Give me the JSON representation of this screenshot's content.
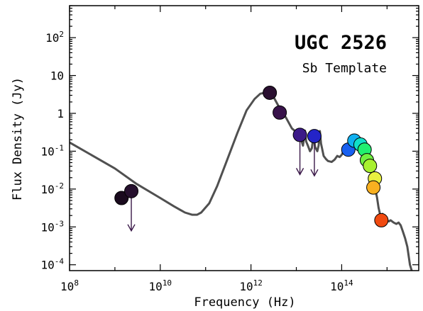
{
  "chart_data": {
    "type": "scatter",
    "title": "UGC 2526",
    "subtitle": "Sb Template",
    "xlabel": "Frequency (Hz)",
    "ylabel": "Flux Density (Jy)",
    "x_scale": "log",
    "y_scale": "log",
    "xlim": [
      100000000.0,
      5000000000000000.0
    ],
    "ylim": [
      7e-05,
      700
    ],
    "x_ticks": [
      {
        "value": 100000000.0,
        "base": "10",
        "exp": "8"
      },
      {
        "value": 10000000000.0,
        "base": "10",
        "exp": "10"
      },
      {
        "value": 1000000000000.0,
        "base": "10",
        "exp": "12"
      },
      {
        "value": 100000000000000.0,
        "base": "10",
        "exp": "14"
      }
    ],
    "y_ticks": [
      {
        "value": 0.0001,
        "base": "10",
        "exp": "-4"
      },
      {
        "value": 0.001,
        "base": "10",
        "exp": "-3"
      },
      {
        "value": 0.01,
        "base": "10",
        "exp": "-2"
      },
      {
        "value": 0.1,
        "base": "10",
        "exp": "-1"
      },
      {
        "value": 1,
        "base": "1",
        "exp": ""
      },
      {
        "value": 10,
        "base": "10",
        "exp": ""
      },
      {
        "value": 100,
        "base": "10",
        "exp": "2"
      }
    ],
    "grid": false,
    "series": [
      {
        "kind": "points",
        "points": [
          {
            "x": 1400000000.0,
            "y": 0.0058,
            "upper_limit": false,
            "color": "#1a0a1e"
          },
          {
            "x": 2300000000.0,
            "y": 0.0088,
            "upper_limit": true,
            "color": "#26102e"
          },
          {
            "x": 2600000000000.0,
            "y": 3.5,
            "upper_limit": false,
            "color": "#2a0f30"
          },
          {
            "x": 4300000000000.0,
            "y": 1.05,
            "upper_limit": false,
            "color": "#38124a"
          },
          {
            "x": 12000000000000.0,
            "y": 0.27,
            "upper_limit": true,
            "color": "#3c1a88"
          },
          {
            "x": 25000000000000.0,
            "y": 0.25,
            "upper_limit": true,
            "color": "#2424c8"
          },
          {
            "x": 140000000000000.0,
            "y": 0.11,
            "upper_limit": false,
            "color": "#1860f0"
          },
          {
            "x": 190000000000000.0,
            "y": 0.19,
            "upper_limit": false,
            "color": "#10b0f0"
          },
          {
            "x": 260000000000000.0,
            "y": 0.15,
            "upper_limit": false,
            "color": "#10e0c8"
          },
          {
            "x": 320000000000000.0,
            "y": 0.11,
            "upper_limit": false,
            "color": "#20f070"
          },
          {
            "x": 360000000000000.0,
            "y": 0.058,
            "upper_limit": false,
            "color": "#70f040"
          },
          {
            "x": 420000000000000.0,
            "y": 0.041,
            "upper_limit": false,
            "color": "#a8f030"
          },
          {
            "x": 540000000000000.0,
            "y": 0.019,
            "upper_limit": false,
            "color": "#e8f040"
          },
          {
            "x": 500000000000000.0,
            "y": 0.011,
            "upper_limit": false,
            "color": "#f8b020"
          },
          {
            "x": 750000000000000.0,
            "y": 0.0015,
            "upper_limit": false,
            "color": "#f04a10"
          }
        ]
      },
      {
        "kind": "line",
        "color": "#505050",
        "points": [
          [
            100000000.0,
            0.17
          ],
          [
            1000000000.0,
            0.035
          ],
          [
            3000000000.0,
            0.0137
          ],
          [
            10000000000.0,
            0.0058
          ],
          [
            20000000000.0,
            0.0035
          ],
          [
            35000000000.0,
            0.0024
          ],
          [
            50000000000.0,
            0.0021
          ],
          [
            65000000000.0,
            0.0021
          ],
          [
            80000000000.0,
            0.0024
          ],
          [
            120000000000.0,
            0.0042
          ],
          [
            180000000000.0,
            0.012
          ],
          [
            300000000000.0,
            0.06
          ],
          [
            500000000000.0,
            0.3
          ],
          [
            800000000000.0,
            1.2
          ],
          [
            1200000000000.0,
            2.4
          ],
          [
            1600000000000.0,
            3.3
          ],
          [
            2200000000000.0,
            3.6
          ],
          [
            3000000000000.0,
            3.0
          ],
          [
            4000000000000.0,
            1.6
          ],
          [
            6000000000000.0,
            0.75
          ],
          [
            8000000000000.0,
            0.4
          ],
          [
            10000000000000.0,
            0.32
          ],
          [
            11000000000000.0,
            0.2
          ],
          [
            11500000000000.0,
            0.28
          ],
          [
            12500000000000.0,
            0.22
          ],
          [
            14000000000000.0,
            0.14
          ],
          [
            15500000000000.0,
            0.35
          ],
          [
            16500000000000.0,
            0.18
          ],
          [
            18000000000000.0,
            0.14
          ],
          [
            20000000000000.0,
            0.1
          ],
          [
            22000000000000.0,
            0.12
          ],
          [
            24000000000000.0,
            0.26
          ],
          [
            26000000000000.0,
            0.13
          ],
          [
            29000000000000.0,
            0.1
          ],
          [
            31000000000000.0,
            0.14
          ],
          [
            33000000000000.0,
            0.34
          ],
          [
            35000000000000.0,
            0.16
          ],
          [
            40000000000000.0,
            0.075
          ],
          [
            45000000000000.0,
            0.062
          ],
          [
            50000000000000.0,
            0.055
          ],
          [
            60000000000000.0,
            0.052
          ],
          [
            70000000000000.0,
            0.06
          ],
          [
            80000000000000.0,
            0.075
          ],
          [
            90000000000000.0,
            0.07
          ],
          [
            100000000000000.0,
            0.08
          ],
          [
            110000000000000.0,
            0.1
          ],
          [
            130000000000000.0,
            0.13
          ],
          [
            150000000000000.0,
            0.16
          ],
          [
            170000000000000.0,
            0.175
          ],
          [
            190000000000000.0,
            0.17
          ],
          [
            220000000000000.0,
            0.15
          ],
          [
            250000000000000.0,
            0.13
          ],
          [
            280000000000000.0,
            0.11
          ],
          [
            300000000000000.0,
            0.09
          ],
          [
            330000000000000.0,
            0.08
          ],
          [
            360000000000000.0,
            0.06
          ],
          [
            400000000000000.0,
            0.045
          ],
          [
            450000000000000.0,
            0.03
          ],
          [
            500000000000000.0,
            0.018
          ],
          [
            550000000000000.0,
            0.01
          ],
          [
            600000000000000.0,
            0.006
          ],
          [
            650000000000000.0,
            0.0032
          ],
          [
            700000000000000.0,
            0.0022
          ],
          [
            750000000000000.0,
            0.0019
          ],
          [
            800000000000000.0,
            0.0022
          ],
          [
            830000000000000.0,
            0.0014
          ],
          [
            860000000000000.0,
            0.0019
          ],
          [
            900000000000000.0,
            0.0016
          ],
          [
            950000000000000.0,
            0.0013
          ],
          [
            1000000000000000.0,
            0.0015
          ],
          [
            1100000000000000.0,
            0.0014
          ],
          [
            1200000000000000.0,
            0.0015
          ],
          [
            1400000000000000.0,
            0.0013
          ],
          [
            1600000000000000.0,
            0.0012
          ],
          [
            1800000000000000.0,
            0.0013
          ],
          [
            2000000000000000.0,
            0.0011
          ],
          [
            2200000000000000.0,
            0.0008
          ],
          [
            2500000000000000.0,
            0.0005
          ],
          [
            2800000000000000.0,
            0.0003
          ],
          [
            3200000000000000.0,
            0.0001
          ],
          [
            3500000000000000.0,
            7e-05
          ]
        ]
      }
    ]
  }
}
